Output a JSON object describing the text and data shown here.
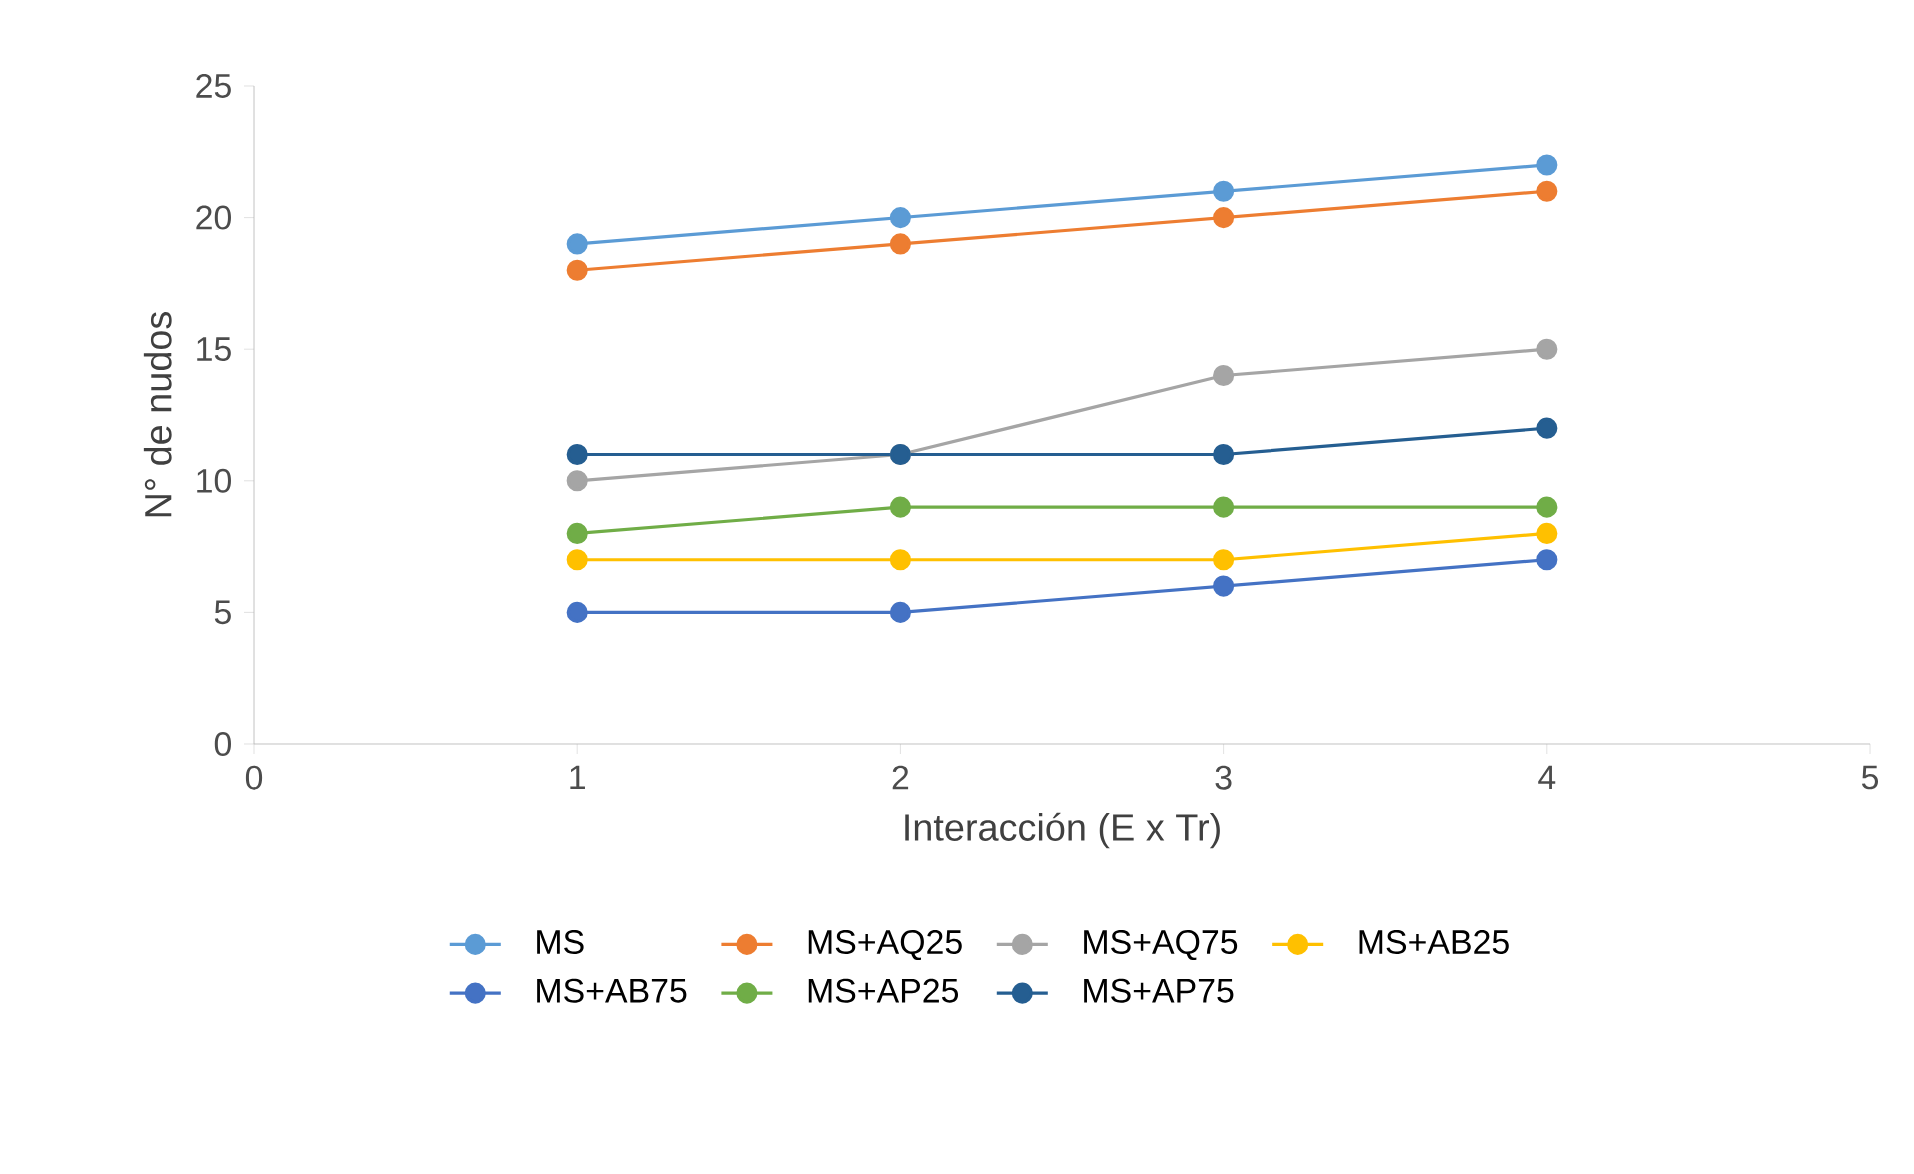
{
  "chart_data": {
    "type": "line",
    "xlabel": "Interacción (E x Tr)",
    "ylabel": "N° de nudos",
    "x": [
      1,
      2,
      3,
      4
    ],
    "xlim": [
      0,
      5
    ],
    "xticks": [
      0,
      1,
      2,
      3,
      4,
      5
    ],
    "ylim": [
      0,
      25
    ],
    "yticks": [
      0,
      5,
      10,
      15,
      20,
      25
    ],
    "grid": false,
    "legend": "bottom",
    "marker": "circle",
    "line_style": "solid",
    "series": [
      {
        "name": "MS",
        "color": "#5b9bd5",
        "values": [
          19,
          20,
          21,
          22
        ]
      },
      {
        "name": "MS+AQ25",
        "color": "#ed7d31",
        "values": [
          18,
          19,
          20,
          21
        ]
      },
      {
        "name": "MS+AQ75",
        "color": "#a5a5a5",
        "values": [
          10,
          11,
          14,
          15
        ]
      },
      {
        "name": "MS+AB25",
        "color": "#ffc000",
        "values": [
          7,
          7,
          7,
          8
        ]
      },
      {
        "name": "MS+AB75",
        "color": "#4472c4",
        "values": [
          5,
          5,
          6,
          7
        ]
      },
      {
        "name": "MS+AP25",
        "color": "#70ad47",
        "values": [
          8,
          9,
          9,
          9
        ]
      },
      {
        "name": "MS+AP75",
        "color": "#255e91",
        "values": [
          11,
          11,
          11,
          12
        ]
      }
    ]
  }
}
